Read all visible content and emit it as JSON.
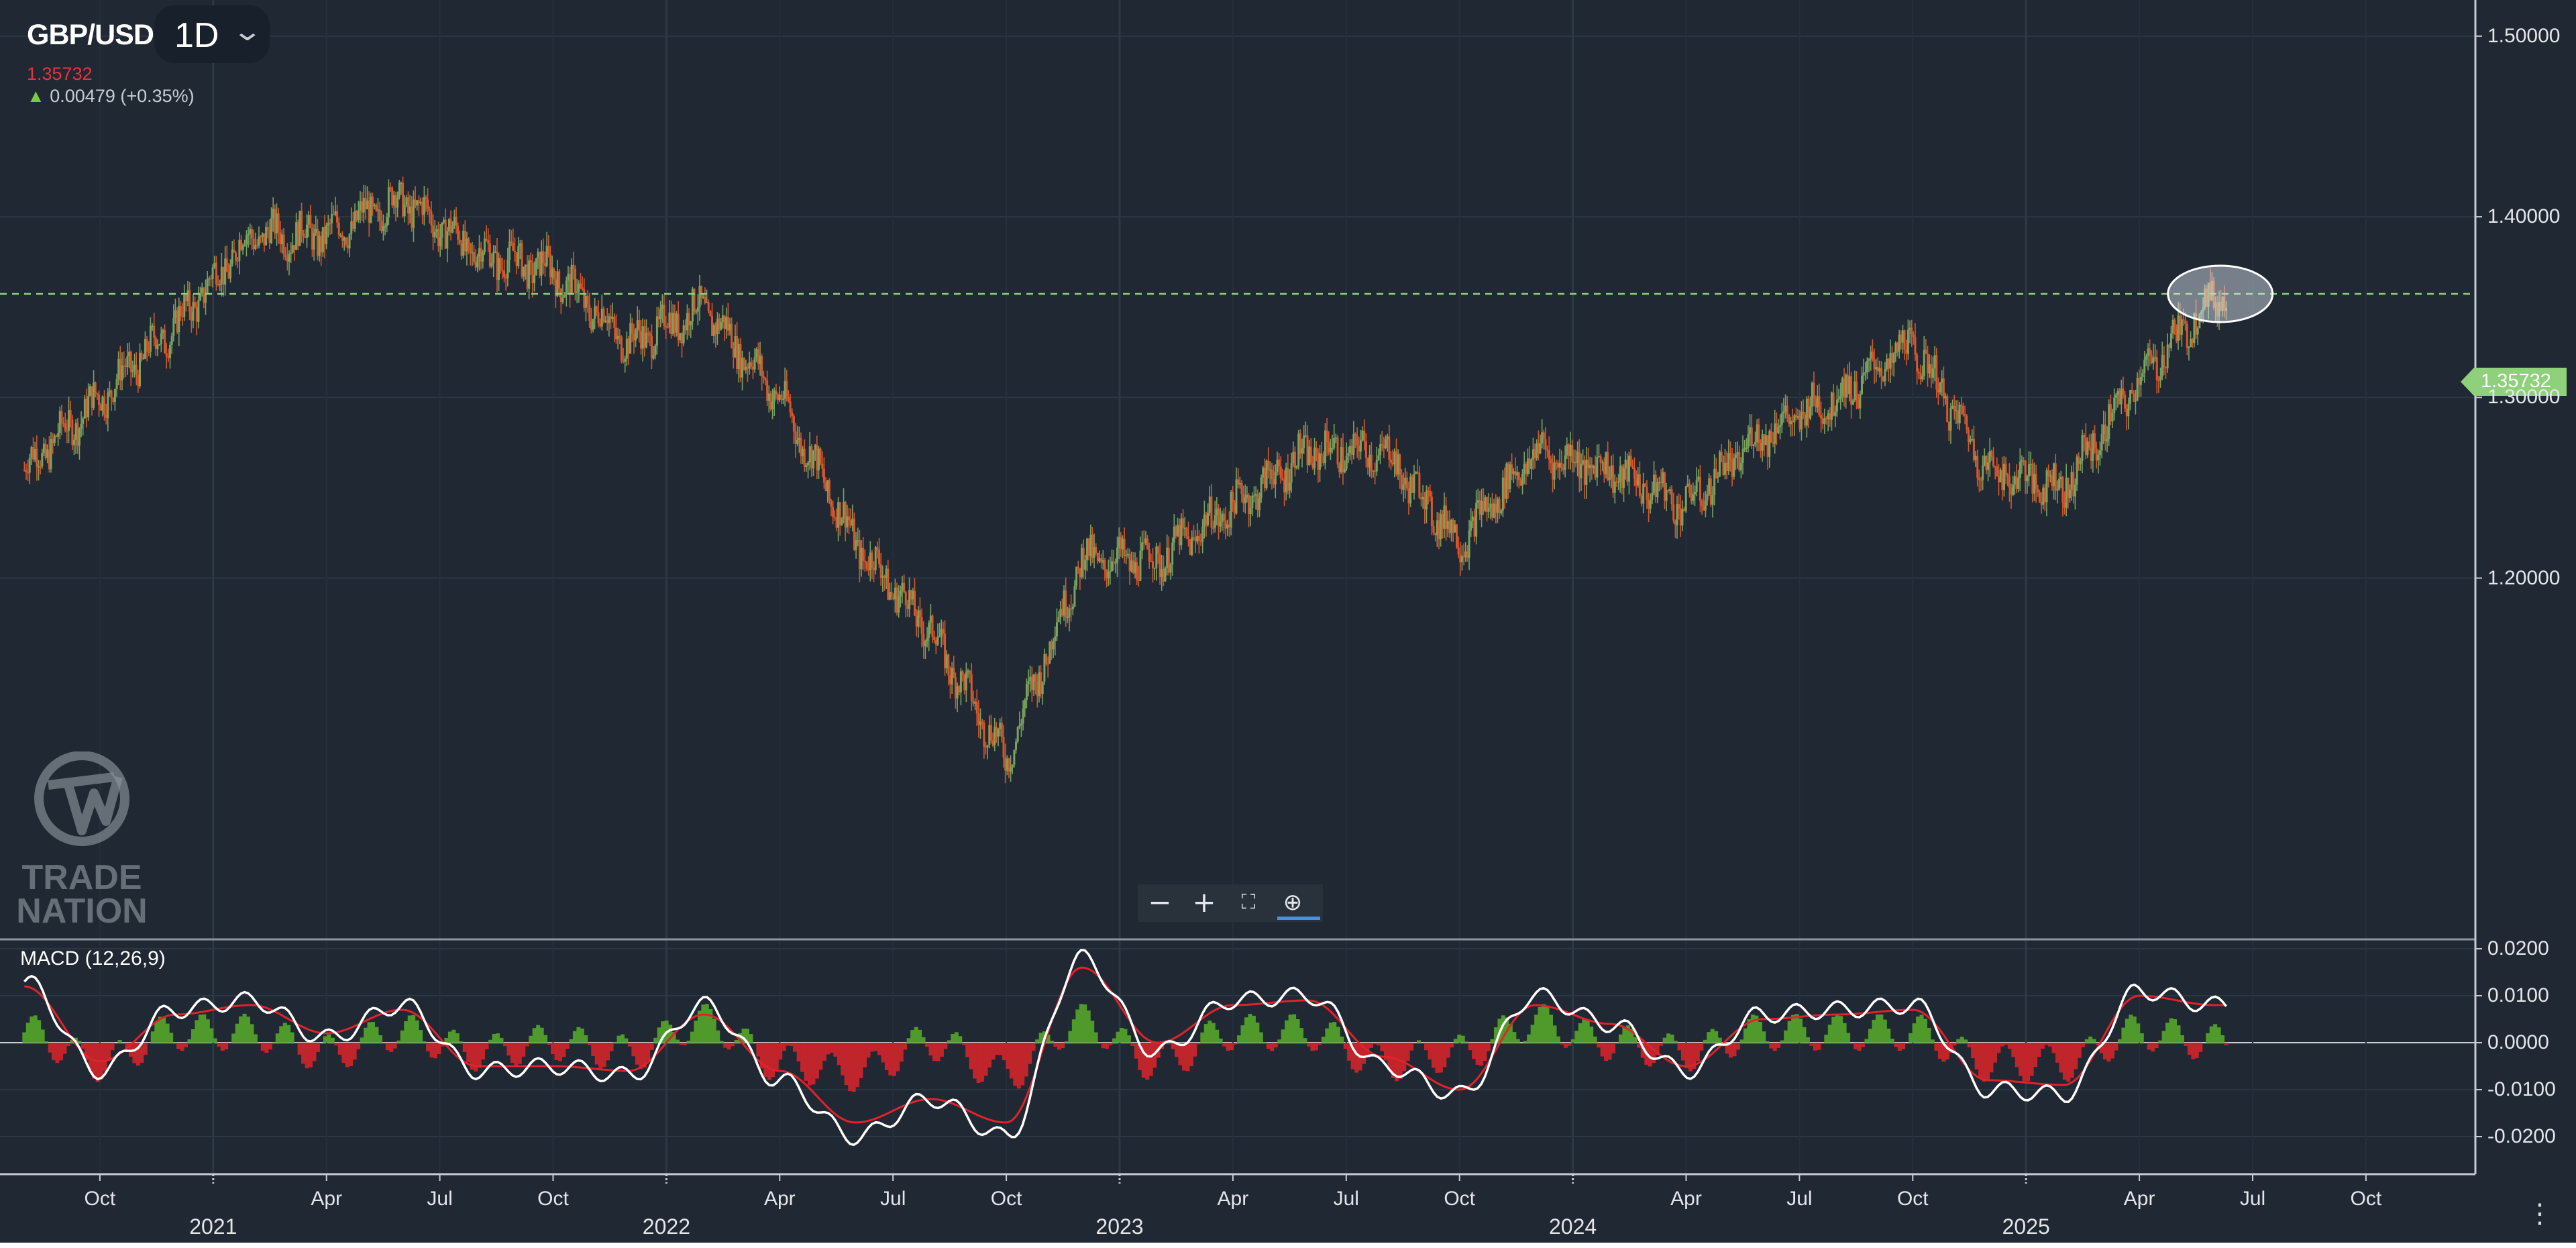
{
  "header": {
    "symbol": "GBP/USD",
    "interval": "1D",
    "last_price": "1.35732",
    "change_arrow": "▲",
    "change_text": "0.00479 (+0.35%)"
  },
  "toolbar": {
    "zoom_out_icon": "minus-icon",
    "zoom_in_icon": "plus-icon",
    "fullscreen_icon": "fullscreen-icon",
    "reset_zoom_icon": "magnifier-icon"
  },
  "watermark": {
    "brand": "TRADE NATION"
  },
  "colors": {
    "background": "#1f2833",
    "up_candle": "#7aa35f",
    "down_candle": "#d9572b",
    "price_line": "#8fd17a",
    "macd_line": "#ffffff",
    "signal_line": "#e2222b",
    "hist_up": "#4f9a2b",
    "hist_down": "#c0252b"
  },
  "chart_data": [
    {
      "type": "candlestick",
      "title": "GBP/USD",
      "ylabel": "",
      "yticks": [
        "1.50000",
        "1.40000",
        "1.30000",
        "1.20000"
      ],
      "ylim": [
        1.0,
        1.52
      ],
      "last_price_label": "1.35732",
      "last_price_value": 1.35732,
      "x_labels": {
        "months": [
          "Oct",
          "Apr",
          "Jul",
          "Oct",
          "Apr",
          "Jul",
          "Oct",
          "Apr",
          "Jul",
          "Oct",
          "Apr",
          "Jul",
          "Oct",
          "Apr",
          "Jul",
          "Oct"
        ],
        "years": [
          "2021",
          "2022",
          "2023",
          "2024",
          "2025"
        ]
      },
      "grid": true,
      "series": [
        {
          "x": [
            "2020-08",
            "2020-10",
            "2020-12",
            "2021-02",
            "2021-04",
            "2021-06",
            "2021-08",
            "2021-10",
            "2021-12",
            "2022-02",
            "2022-04",
            "2022-06",
            "2022-08",
            "2022-10",
            "2022-12",
            "2023-02",
            "2023-04",
            "2023-06",
            "2023-08",
            "2023-10",
            "2023-12",
            "2024-02",
            "2024-04",
            "2024-06",
            "2024-08",
            "2024-10",
            "2024-12",
            "2025-02",
            "2025-04",
            "2025-06"
          ],
          "values": [
            1.26,
            1.3,
            1.34,
            1.39,
            1.39,
            1.41,
            1.38,
            1.37,
            1.33,
            1.35,
            1.3,
            1.22,
            1.17,
            1.1,
            1.21,
            1.21,
            1.24,
            1.27,
            1.27,
            1.22,
            1.27,
            1.26,
            1.24,
            1.28,
            1.3,
            1.33,
            1.26,
            1.25,
            1.31,
            1.357
          ]
        }
      ]
    },
    {
      "type": "line",
      "title": "MACD (12,26,9)",
      "yticks": [
        "0.0200",
        "0.0100",
        "0.0000",
        "-0.0100",
        "-0.0200"
      ],
      "ylim": [
        -0.028,
        0.022
      ],
      "grid": true,
      "series": [
        {
          "name": "MACD",
          "x": [
            "2020-08",
            "2020-10",
            "2020-12",
            "2021-02",
            "2021-04",
            "2021-06",
            "2021-08",
            "2021-10",
            "2021-12",
            "2022-02",
            "2022-04",
            "2022-06",
            "2022-08",
            "2022-10",
            "2022-12",
            "2023-02",
            "2023-04",
            "2023-06",
            "2023-08",
            "2023-10",
            "2023-12",
            "2024-02",
            "2024-04",
            "2024-06",
            "2024-08",
            "2024-10",
            "2024-12",
            "2025-02",
            "2025-04",
            "2025-06"
          ],
          "values": [
            0.013,
            -0.006,
            0.007,
            0.009,
            0.001,
            0.008,
            -0.006,
            -0.005,
            -0.007,
            0.008,
            -0.008,
            -0.02,
            -0.012,
            -0.02,
            0.018,
            -0.002,
            0.009,
            0.01,
            -0.005,
            -0.011,
            0.01,
            0.004,
            -0.006,
            0.006,
            0.007,
            0.008,
            -0.01,
            -0.011,
            0.011,
            0.008
          ]
        },
        {
          "name": "Signal",
          "x": [
            "2020-08",
            "2020-10",
            "2020-12",
            "2021-02",
            "2021-04",
            "2021-06",
            "2021-08",
            "2021-10",
            "2021-12",
            "2022-02",
            "2022-04",
            "2022-06",
            "2022-08",
            "2022-10",
            "2022-12",
            "2023-02",
            "2023-04",
            "2023-06",
            "2023-08",
            "2023-10",
            "2023-12",
            "2024-02",
            "2024-04",
            "2024-06",
            "2024-08",
            "2024-10",
            "2024-12",
            "2025-02",
            "2025-04",
            "2025-06"
          ],
          "values": [
            0.012,
            -0.004,
            0.006,
            0.008,
            0.002,
            0.007,
            -0.005,
            -0.005,
            -0.006,
            0.006,
            -0.006,
            -0.017,
            -0.012,
            -0.017,
            0.016,
            0.0,
            0.008,
            0.009,
            -0.003,
            -0.01,
            0.008,
            0.004,
            -0.005,
            0.005,
            0.006,
            0.007,
            -0.008,
            -0.009,
            0.01,
            0.008
          ]
        }
      ]
    }
  ]
}
